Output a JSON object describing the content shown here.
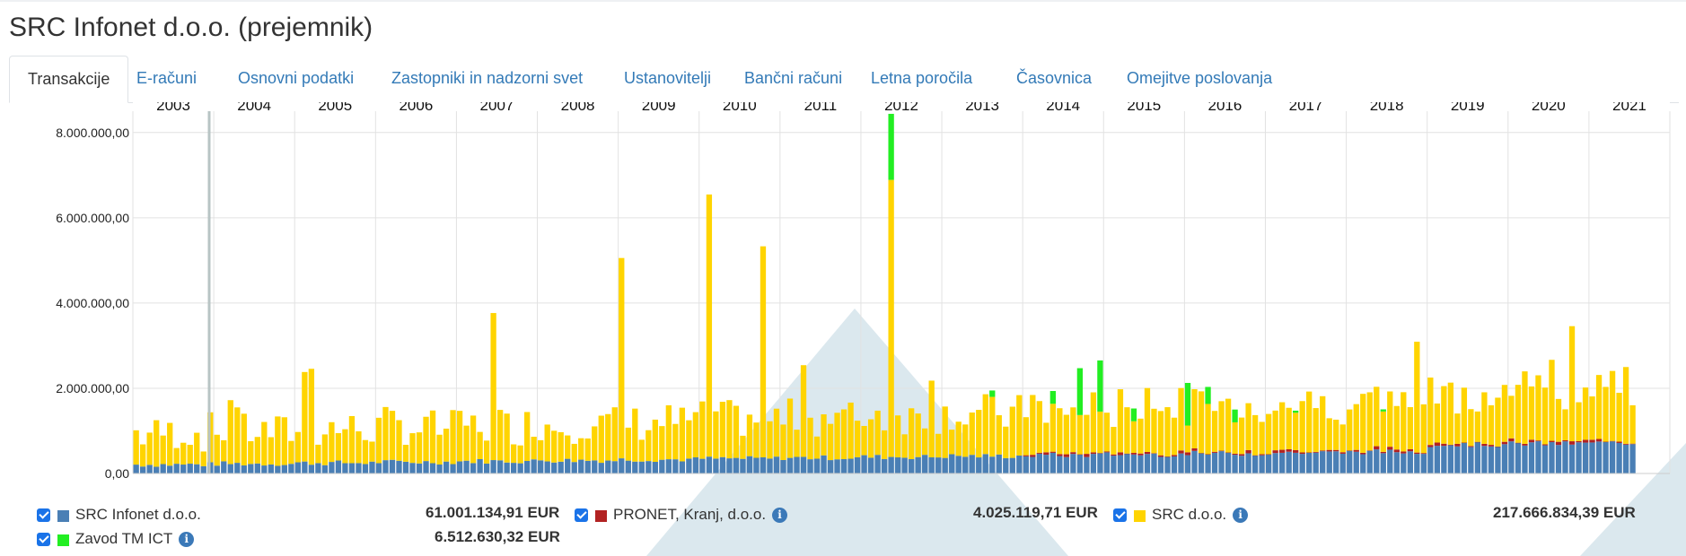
{
  "page_title": "SRC Infonet d.o.o. (prejemnik)",
  "tabs": [
    {
      "label": "Transakcije",
      "active": true
    },
    {
      "label": "E-računi"
    },
    {
      "label": "Osnovni podatki"
    },
    {
      "label": "Zastopniki in nadzorni svet"
    },
    {
      "label": "Ustanovitelji"
    },
    {
      "label": "Bančni računi"
    },
    {
      "label": "Letna poročila"
    },
    {
      "label": "Časovnica"
    },
    {
      "label": "Omejitve poslovanja"
    }
  ],
  "legend": [
    {
      "name": "SRC Infonet d.o.o.",
      "total": "61.001.134,91 EUR",
      "color": "#4a7fb5",
      "checked": true,
      "info": false
    },
    {
      "name": "PRONET, Kranj, d.o.o.",
      "total": "4.025.119,71 EUR",
      "color": "#b22222",
      "checked": true,
      "info": true
    },
    {
      "name": "SRC d.o.o.",
      "total": "217.666.834,39 EUR",
      "color": "#ffd400",
      "checked": true,
      "info": true
    },
    {
      "name": "Zavod TM ICT",
      "total": "6.512.630,32 EUR",
      "color": "#22ee22",
      "checked": true,
      "info": true
    }
  ],
  "chart_data": {
    "type": "bar",
    "stacked": true,
    "x_years": [
      "2003",
      "2004",
      "2005",
      "2006",
      "2007",
      "2008",
      "2009",
      "2010",
      "2011",
      "2012",
      "2013",
      "2014",
      "2015",
      "2016",
      "2017",
      "2018",
      "2019",
      "2020",
      "2021"
    ],
    "y_ticks": [
      "0,00",
      "2.000.000,00",
      "4.000.000,00",
      "6.000.000,00",
      "8.000.000,00"
    ],
    "ylim": [
      0,
      8500000
    ],
    "grid": true,
    "series_colors": {
      "SRC Infonet d.o.o.": "#4a7fb5",
      "PRONET, Kranj, d.o.o.": "#b22222",
      "SRC d.o.o.": "#ffd400",
      "Zavod TM ICT": "#22ee22"
    },
    "monthly": {
      "SRC Infonet d.o.o.": [
        100,
        130,
        160,
        120,
        120,
        140,
        130,
        120,
        140,
        150,
        130,
        140,
        130,
        140,
        150,
        140,
        150,
        140,
        160,
        150,
        140,
        160,
        150,
        140,
        140,
        150,
        170,
        180,
        150,
        170,
        160,
        180,
        200,
        170,
        180,
        160,
        180,
        190,
        200,
        180,
        190,
        200,
        180,
        200,
        190,
        210,
        230,
        200,
        220,
        210,
        200,
        220,
        230,
        210,
        200,
        220,
        240,
        220,
        230,
        250,
        240,
        230,
        250,
        260,
        240,
        250,
        270,
        260,
        240,
        270,
        260,
        280,
        290,
        270,
        280,
        300,
        280,
        290,
        300,
        280,
        310,
        300,
        290,
        310,
        300,
        320,
        300,
        310,
        330,
        300,
        310,
        320,
        330,
        300,
        320,
        340,
        310,
        330,
        340,
        350,
        300,
        330,
        340,
        360,
        320,
        350,
        370,
        340,
        360,
        350,
        380,
        360,
        380,
        400,
        370,
        390,
        380,
        400,
        390,
        410,
        400,
        420,
        410,
        430,
        400,
        450,
        500,
        620,
        700,
        550,
        480,
        600,
        750,
        520,
        650,
        580,
        600,
        620,
        580,
        650,
        600,
        620,
        640,
        600,
        650,
        660,
        620,
        680,
        650,
        700,
        620,
        660,
        700,
        680,
        650,
        720,
        680,
        700,
        690,
        720,
        700,
        740,
        700,
        720,
        760,
        700,
        740,
        750,
        720,
        780,
        740,
        760,
        800,
        760,
        780,
        820,
        780,
        800,
        840,
        800,
        820,
        860,
        820,
        850,
        880,
        840,
        860,
        900,
        860,
        880,
        920,
        880,
        900,
        940,
        900,
        920,
        960,
        920,
        940,
        980,
        940,
        960,
        1000,
        960,
        980,
        1020,
        980,
        1000,
        1040,
        1000,
        1020,
        1060,
        1020,
        1040,
        1080,
        1040,
        1060,
        1100,
        1060
      ],
      "SRC d.o.o.": [
        800,
        1300,
        900,
        500,
        300,
        400,
        600,
        500,
        400,
        450,
        500,
        300,
        850,
        1500,
        1200,
        300,
        400,
        500,
        600,
        700,
        500,
        450,
        550,
        2100,
        2300,
        400,
        500,
        600,
        550,
        700,
        800,
        500,
        1200,
        1300,
        900,
        1100,
        1200,
        1600,
        1700,
        900,
        1100,
        1200,
        1300,
        800,
        700,
        900,
        800,
        700,
        3400,
        800,
        1100,
        900,
        700,
        1500,
        1000,
        800,
        1500,
        1000,
        1200,
        1300,
        4700,
        800,
        1000,
        900,
        1200,
        1000,
        1000,
        800,
        2500,
        900,
        1100,
        6100,
        900,
        600,
        700,
        800,
        1000,
        1200,
        1500,
        2300,
        1100,
        1000,
        1100,
        4900,
        400,
        600,
        700,
        800,
        700,
        900,
        800,
        6400,
        700,
        500,
        600,
        800,
        1100,
        1200,
        1000,
        1000,
        1400,
        600,
        600,
        400,
        1500,
        700,
        800,
        1200,
        900,
        700,
        900,
        800,
        650,
        600,
        400,
        1300,
        700,
        900,
        1300,
        900,
        700,
        600,
        900,
        1000,
        1100,
        900,
        700,
        700,
        800,
        500,
        300,
        600,
        800,
        600,
        1100,
        1300,
        1100,
        900,
        1000,
        900,
        1100,
        1000,
        800,
        600,
        700,
        800,
        900,
        600,
        700,
        800,
        900,
        1000,
        1200,
        1000,
        800,
        1300,
        900,
        700,
        800,
        700,
        500,
        800,
        900,
        800,
        900,
        1000,
        1100,
        900,
        1000,
        1300,
        900,
        800,
        700,
        500,
        600,
        800,
        900,
        1100,
        1200,
        900,
        1200,
        1400,
        1000,
        1100,
        1200,
        1300,
        900,
        1000,
        1100,
        2700,
        1000,
        1300,
        1100,
        1200,
        1000,
        1400,
        1800,
        1200,
        1000,
        1100,
        2000,
        900,
        1100,
        1200,
        1300,
        1500,
        1200,
        1100,
        1600,
        1400,
        2000,
        1500,
        1100,
        2600,
        1600,
        1500,
        1100,
        1700,
        1500,
        1100,
        1500,
        1900,
        1800,
        1700,
        2500,
        1700,
        1600,
        1900,
        1600,
        1000,
        1100
      ],
      "spike_labels": []
    }
  }
}
